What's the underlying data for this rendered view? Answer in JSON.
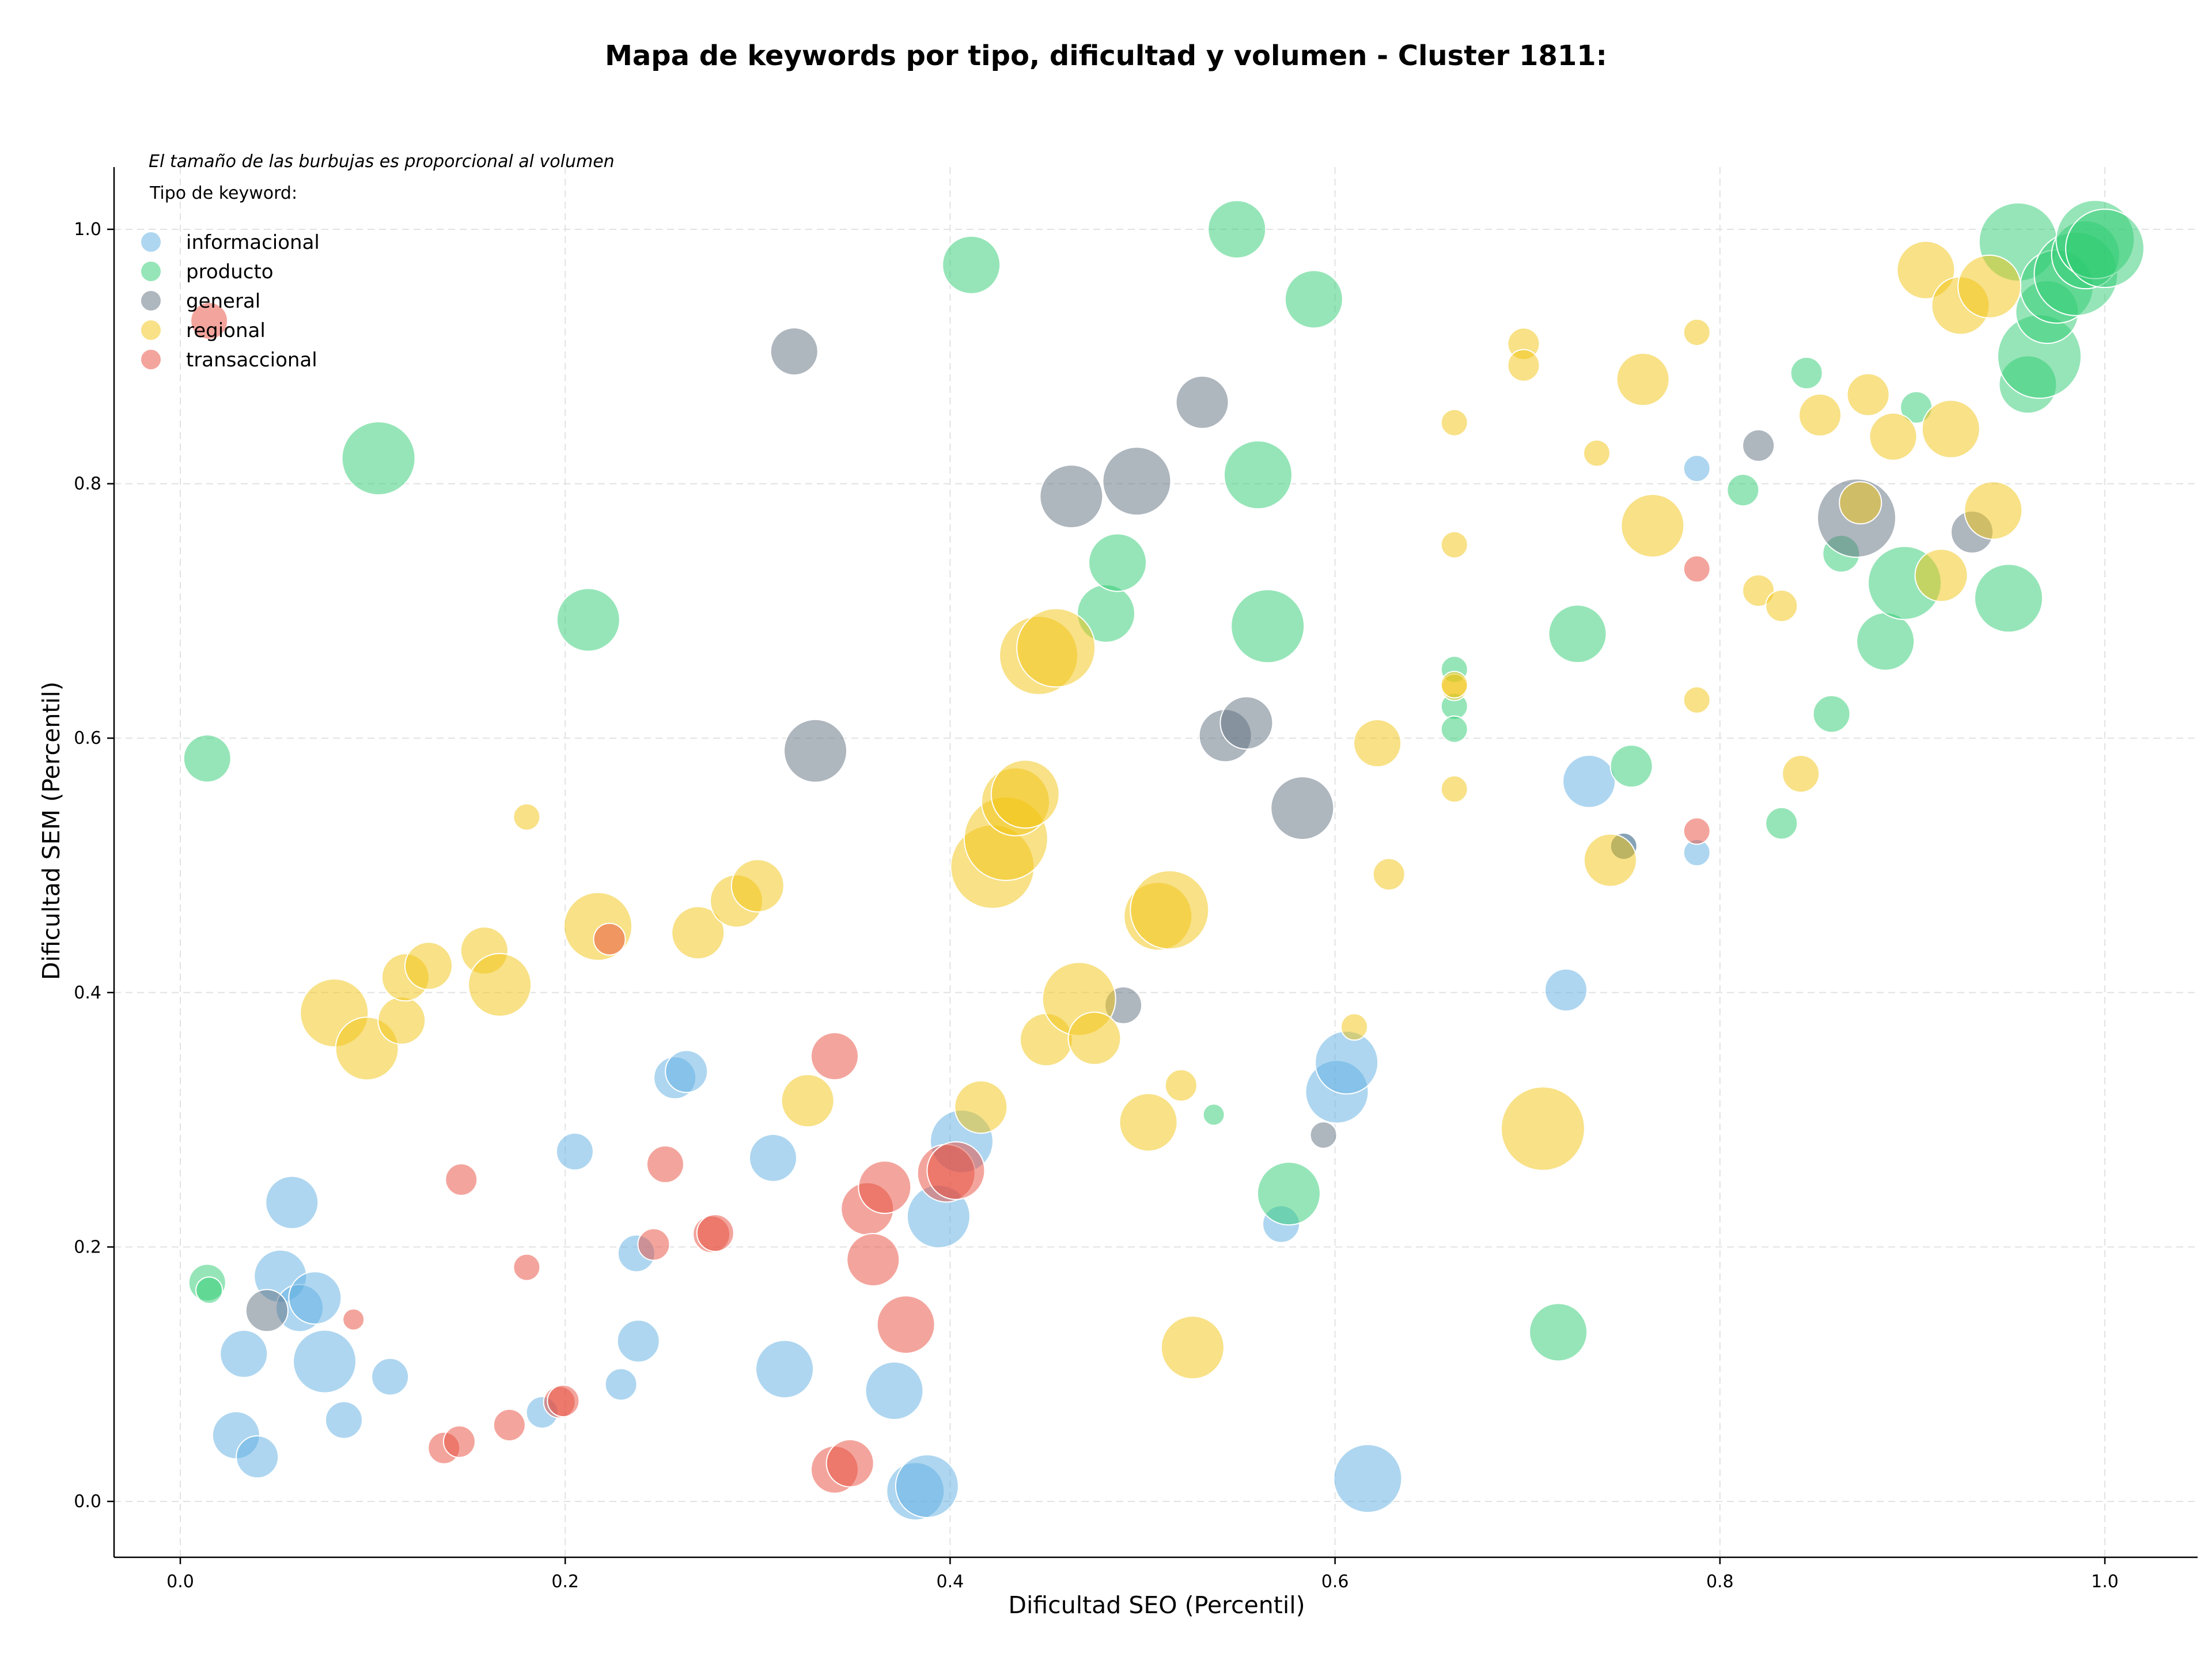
{
  "chart_data": {
    "type": "scatter",
    "title": "Mapa de keywords por tipo, dificultad y volumen - Cluster 1811:",
    "subtitle": "El tamaño de las burbujas es proporcional al volumen",
    "xlabel": "Dificultad SEO (Percentil)",
    "ylabel": "Dificultad SEM (Percentil)",
    "xlim": [
      -0.035,
      1.05
    ],
    "ylim": [
      -0.045,
      1.05
    ],
    "xticks": [
      "0.0",
      "0.2",
      "0.4",
      "0.6",
      "0.8",
      "1.0"
    ],
    "yticks": [
      "0.0",
      "0.2",
      "0.4",
      "0.6",
      "0.8",
      "1.0"
    ],
    "grid": true,
    "legend": {
      "title": "Tipo de keyword:",
      "position": "top-left"
    },
    "series": [
      {
        "name": "informacional",
        "color": "#5DADE2",
        "points": [
          [
            0.029,
            0.052,
            3
          ],
          [
            0.04,
            0.035,
            2.5
          ],
          [
            0.033,
            0.116,
            3
          ],
          [
            0.058,
            0.235,
            3.5
          ],
          [
            0.052,
            0.177,
            3.5
          ],
          [
            0.062,
            0.152,
            3
          ],
          [
            0.07,
            0.16,
            3.5
          ],
          [
            0.075,
            0.11,
            4.5
          ],
          [
            0.085,
            0.064,
            2
          ],
          [
            0.109,
            0.098,
            2
          ],
          [
            0.188,
            0.07,
            1.5
          ],
          [
            0.205,
            0.275,
            2
          ],
          [
            0.229,
            0.092,
            1.5
          ],
          [
            0.237,
            0.195,
            2
          ],
          [
            0.238,
            0.126,
            2.5
          ],
          [
            0.257,
            0.333,
            2.5
          ],
          [
            0.263,
            0.338,
            2.5
          ],
          [
            0.308,
            0.27,
            3
          ],
          [
            0.314,
            0.104,
            4
          ],
          [
            0.371,
            0.087,
            4
          ],
          [
            0.382,
            0.008,
            4
          ],
          [
            0.388,
            0.012,
            4.5
          ],
          [
            0.394,
            0.224,
            4.5
          ],
          [
            0.406,
            0.283,
            4.5
          ],
          [
            0.572,
            0.218,
            2
          ],
          [
            0.601,
            0.322,
            4.5
          ],
          [
            0.606,
            0.345,
            4.5
          ],
          [
            0.617,
            0.018,
            5
          ],
          [
            0.72,
            0.402,
            2.5
          ],
          [
            0.732,
            0.566,
            3.5
          ],
          [
            0.75,
            0.515,
            1
          ],
          [
            0.788,
            0.51,
            1
          ],
          [
            0.788,
            0.812,
            1
          ]
        ]
      },
      {
        "name": "producto",
        "color": "#2ECC71",
        "points": [
          [
            0.014,
            0.172,
            2
          ],
          [
            0.015,
            0.166,
            1
          ],
          [
            0.014,
            0.584,
            3
          ],
          [
            0.103,
            0.82,
            5.5
          ],
          [
            0.212,
            0.693,
            4.5
          ],
          [
            0.411,
            0.972,
            4
          ],
          [
            0.481,
            0.698,
            4
          ],
          [
            0.487,
            0.738,
            4
          ],
          [
            0.537,
            0.304,
            0.5
          ],
          [
            0.549,
            1.0,
            4
          ],
          [
            0.56,
            0.807,
            5
          ],
          [
            0.565,
            0.688,
            5.5
          ],
          [
            0.576,
            0.242,
            4.5
          ],
          [
            0.589,
            0.945,
            4
          ],
          [
            0.662,
            0.654,
            1
          ],
          [
            0.662,
            0.625,
            1
          ],
          [
            0.662,
            0.607,
            1
          ],
          [
            0.716,
            0.133,
            4
          ],
          [
            0.726,
            0.682,
            4
          ],
          [
            0.754,
            0.578,
            2.5
          ],
          [
            0.812,
            0.795,
            1.5
          ],
          [
            0.832,
            0.533,
            1.5
          ],
          [
            0.845,
            0.887,
            1.5
          ],
          [
            0.858,
            0.619,
            2
          ],
          [
            0.863,
            0.745,
            2
          ],
          [
            0.886,
            0.676,
            4
          ],
          [
            0.896,
            0.722,
            5.5
          ],
          [
            0.902,
            0.86,
            1.5
          ],
          [
            0.95,
            0.71,
            5
          ],
          [
            0.955,
            0.99,
            6
          ],
          [
            0.96,
            0.878,
            4
          ],
          [
            0.966,
            0.9,
            6.5
          ],
          [
            0.97,
            0.935,
            4.5
          ],
          [
            0.975,
            0.955,
            5.5
          ],
          [
            0.985,
            0.965,
            6.5
          ],
          [
            0.99,
            0.98,
            5
          ],
          [
            0.995,
            0.992,
            6
          ],
          [
            1.0,
            0.985,
            6
          ]
        ]
      },
      {
        "name": "general",
        "color": "#5D6D7E",
        "points": [
          [
            0.045,
            0.15,
            2.5
          ],
          [
            0.319,
            0.904,
            3
          ],
          [
            0.33,
            0.59,
            4.5
          ],
          [
            0.463,
            0.79,
            4.5
          ],
          [
            0.49,
            0.39,
            2
          ],
          [
            0.497,
            0.802,
            5
          ],
          [
            0.531,
            0.864,
            3.5
          ],
          [
            0.543,
            0.602,
            3.5
          ],
          [
            0.554,
            0.612,
            3.5
          ],
          [
            0.583,
            0.545,
            4.5
          ],
          [
            0.594,
            0.288,
            1
          ],
          [
            0.75,
            0.515,
            1
          ],
          [
            0.82,
            0.83,
            1.5
          ],
          [
            0.871,
            0.773,
            6
          ],
          [
            0.931,
            0.762,
            2.5
          ]
        ]
      },
      {
        "name": "regional",
        "color": "#F1C40F",
        "points": [
          [
            0.08,
            0.384,
            5
          ],
          [
            0.097,
            0.356,
            4.5
          ],
          [
            0.115,
            0.378,
            3
          ],
          [
            0.117,
            0.412,
            3
          ],
          [
            0.129,
            0.421,
            3
          ],
          [
            0.158,
            0.433,
            3
          ],
          [
            0.166,
            0.406,
            4.5
          ],
          [
            0.18,
            0.538,
            1
          ],
          [
            0.217,
            0.452,
            5
          ],
          [
            0.269,
            0.447,
            3.5
          ],
          [
            0.289,
            0.472,
            3.5
          ],
          [
            0.3,
            0.484,
            3.5
          ],
          [
            0.326,
            0.315,
            3.5
          ],
          [
            0.416,
            0.31,
            3.5
          ],
          [
            0.422,
            0.499,
            6.5
          ],
          [
            0.429,
            0.521,
            6.5
          ],
          [
            0.434,
            0.55,
            5
          ],
          [
            0.439,
            0.556,
            5
          ],
          [
            0.446,
            0.665,
            6
          ],
          [
            0.455,
            0.671,
            6
          ],
          [
            0.45,
            0.363,
            3.5
          ],
          [
            0.467,
            0.395,
            5.5
          ],
          [
            0.475,
            0.364,
            3.5
          ],
          [
            0.503,
            0.298,
            4
          ],
          [
            0.508,
            0.46,
            5
          ],
          [
            0.514,
            0.465,
            6
          ],
          [
            0.52,
            0.327,
            1.5
          ],
          [
            0.526,
            0.121,
            4.5
          ],
          [
            0.61,
            0.373,
            1
          ],
          [
            0.622,
            0.596,
            3
          ],
          [
            0.628,
            0.493,
            1.5
          ],
          [
            0.662,
            0.848,
            1
          ],
          [
            0.662,
            0.752,
            1
          ],
          [
            0.662,
            0.56,
            1
          ],
          [
            0.662,
            0.64,
            1
          ],
          [
            0.662,
            0.642,
            1
          ],
          [
            0.698,
            0.91,
            1.5
          ],
          [
            0.698,
            0.893,
            1.5
          ],
          [
            0.708,
            0.293,
            6.5
          ],
          [
            0.736,
            0.824,
            1
          ],
          [
            0.743,
            0.504,
            3.5
          ],
          [
            0.76,
            0.882,
            3.5
          ],
          [
            0.765,
            0.767,
            4.5
          ],
          [
            0.788,
            0.919,
            1
          ],
          [
            0.788,
            0.63,
            1
          ],
          [
            0.82,
            0.716,
            1.5
          ],
          [
            0.832,
            0.704,
            1.5
          ],
          [
            0.842,
            0.572,
            2
          ],
          [
            0.852,
            0.854,
            2.5
          ],
          [
            0.877,
            0.87,
            2.5
          ],
          [
            0.873,
            0.785,
            2.5
          ],
          [
            0.89,
            0.837,
            3
          ],
          [
            0.907,
            0.968,
            4
          ],
          [
            0.915,
            0.728,
            3.5
          ],
          [
            0.92,
            0.843,
            4
          ],
          [
            0.925,
            0.94,
            4
          ],
          [
            0.94,
            0.955,
            4.5
          ],
          [
            0.942,
            0.779,
            4
          ]
        ]
      },
      {
        "name": "transaccional",
        "color": "#E74C3C",
        "points": [
          [
            0.015,
            0.928,
            2
          ],
          [
            0.09,
            0.143,
            0.5
          ],
          [
            0.137,
            0.042,
            1.5
          ],
          [
            0.145,
            0.047,
            1.5
          ],
          [
            0.146,
            0.253,
            1.5
          ],
          [
            0.171,
            0.06,
            1.5
          ],
          [
            0.18,
            0.184,
            1
          ],
          [
            0.197,
            0.078,
            1.5
          ],
          [
            0.199,
            0.079,
            1.5
          ],
          [
            0.223,
            0.442,
            1.5
          ],
          [
            0.246,
            0.202,
            1.5
          ],
          [
            0.252,
            0.265,
            2
          ],
          [
            0.276,
            0.21,
            2
          ],
          [
            0.278,
            0.211,
            2
          ],
          [
            0.34,
            0.35,
            3
          ],
          [
            0.34,
            0.025,
            3
          ],
          [
            0.348,
            0.03,
            3
          ],
          [
            0.357,
            0.23,
            3.5
          ],
          [
            0.36,
            0.19,
            3.5
          ],
          [
            0.366,
            0.247,
            3.5
          ],
          [
            0.377,
            0.139,
            4
          ],
          [
            0.398,
            0.258,
            4
          ],
          [
            0.403,
            0.26,
            4
          ],
          [
            0.788,
            0.733,
            1
          ],
          [
            0.788,
            0.527,
            1
          ]
        ]
      }
    ]
  }
}
